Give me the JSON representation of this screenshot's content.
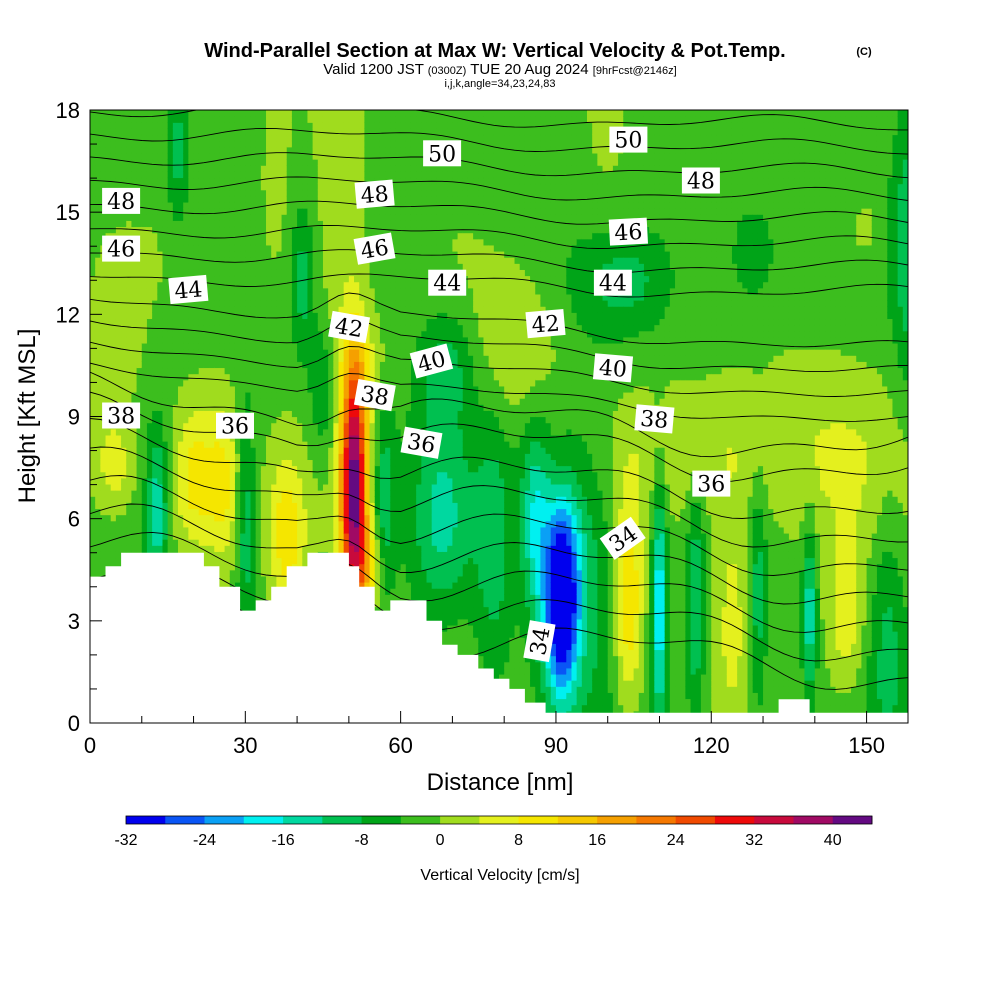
{
  "header": {
    "title": "Wind-Parallel Section at Max W: Vertical Velocity & Pot.Temp.",
    "copyright": "(C)",
    "valid_prefix": "Valid 1200 JST",
    "valid_utc": "(0300Z)",
    "valid_date": "TUE 20 Aug 2024",
    "forecast": "[9hrFcst@2146z]",
    "indices": "i,j,k,angle=34,23,24,83"
  },
  "chart_data": {
    "type": "heatmap",
    "xlabel": "Distance [nm]",
    "ylabel": "Height [Kft MSL]",
    "xlim": [
      0,
      158
    ],
    "ylim": [
      0,
      18
    ],
    "x_ticks": [
      0,
      30,
      60,
      90,
      120,
      150
    ],
    "y_ticks": [
      0,
      3,
      6,
      9,
      12,
      15,
      18
    ],
    "grid": false,
    "terrain": {
      "description": "white terrain mask along the bottom",
      "profile": [
        [
          0,
          4.3
        ],
        [
          3,
          4.3
        ],
        [
          3,
          4.6
        ],
        [
          6,
          4.6
        ],
        [
          6,
          5.0
        ],
        [
          22,
          5.0
        ],
        [
          22,
          4.6
        ],
        [
          25,
          4.6
        ],
        [
          25,
          4.0
        ],
        [
          29,
          4.0
        ],
        [
          29,
          3.3
        ],
        [
          32,
          3.3
        ],
        [
          32,
          3.6
        ],
        [
          35,
          3.6
        ],
        [
          35,
          4.0
        ],
        [
          38,
          4.0
        ],
        [
          38,
          4.6
        ],
        [
          42,
          4.6
        ],
        [
          42,
          5.0
        ],
        [
          50,
          5.0
        ],
        [
          50,
          4.6
        ],
        [
          52,
          4.6
        ],
        [
          52,
          4.0
        ],
        [
          55,
          4.0
        ],
        [
          55,
          3.3
        ],
        [
          58,
          3.3
        ],
        [
          58,
          3.6
        ],
        [
          65,
          3.6
        ],
        [
          65,
          3.0
        ],
        [
          68,
          3.0
        ],
        [
          68,
          2.3
        ],
        [
          71,
          2.3
        ],
        [
          71,
          2.0
        ],
        [
          75,
          2.0
        ],
        [
          75,
          1.6
        ],
        [
          78,
          1.6
        ],
        [
          78,
          1.3
        ],
        [
          81,
          1.3
        ],
        [
          81,
          1.0
        ],
        [
          84,
          1.0
        ],
        [
          84,
          0.6
        ],
        [
          88,
          0.6
        ],
        [
          88,
          0.3
        ],
        [
          133,
          0.3
        ],
        [
          133,
          0.7
        ],
        [
          139,
          0.7
        ],
        [
          139,
          0.3
        ],
        [
          158,
          0.3
        ]
      ]
    },
    "colorbar": {
      "label": "Vertical Velocity [cm/s]",
      "tick_labels": [
        "-32",
        "-24",
        "-16",
        "-8",
        "0",
        "8",
        "16",
        "24",
        "32",
        "40"
      ],
      "levels": [
        -32,
        -28,
        -24,
        -20,
        -16,
        -12,
        -8,
        -4,
        0,
        4,
        8,
        12,
        16,
        20,
        24,
        28,
        32,
        36,
        40,
        44
      ],
      "colors": [
        "#0000ee",
        "#0a55f5",
        "#0aa0f5",
        "#00f0f0",
        "#00d8a0",
        "#00c050",
        "#00a418",
        "#3cbe1e",
        "#a0dc1e",
        "#e4f01e",
        "#f5e600",
        "#f5c800",
        "#f5a000",
        "#f57800",
        "#f04a00",
        "#ee0a0a",
        "#c80a3c",
        "#a00a64",
        "#640a82"
      ]
    },
    "background_value": -2,
    "anomalies": [
      {
        "x": 20,
        "y": 7.2,
        "sx": 3.2,
        "sy": 1.6,
        "w": 13
      },
      {
        "x": 26,
        "y": 7.0,
        "sx": 2.5,
        "sy": 1.8,
        "w": 10
      },
      {
        "x": 13,
        "y": 6.2,
        "sx": 1.4,
        "sy": 1.6,
        "w": -12
      },
      {
        "x": 30,
        "y": 6.0,
        "sx": 1.3,
        "sy": 2.4,
        "w": -10
      },
      {
        "x": 38,
        "y": 5.5,
        "sx": 2.5,
        "sy": 1.6,
        "w": 12
      },
      {
        "x": 51,
        "y": 6.8,
        "sx": 1.8,
        "sy": 2.6,
        "w": 44
      },
      {
        "x": 54,
        "y": 4.5,
        "sx": 2.0,
        "sy": 0.8,
        "w": 10
      },
      {
        "x": 57,
        "y": 6.5,
        "sx": 1.4,
        "sy": 2.0,
        "w": -9
      },
      {
        "x": 68,
        "y": 6.0,
        "sx": 4.0,
        "sy": 2.0,
        "w": -10
      },
      {
        "x": 78,
        "y": 5.0,
        "sx": 2.5,
        "sy": 2.8,
        "w": -8
      },
      {
        "x": 86,
        "y": 6.0,
        "sx": 2.0,
        "sy": 2.0,
        "w": -14
      },
      {
        "x": 91,
        "y": 3.7,
        "sx": 2.4,
        "sy": 2.0,
        "w": -36
      },
      {
        "x": 96,
        "y": 5.0,
        "sx": 4.0,
        "sy": 3.0,
        "w": -8
      },
      {
        "x": 104,
        "y": 3.5,
        "sx": 2.0,
        "sy": 2.2,
        "w": 14
      },
      {
        "x": 110,
        "y": 3.5,
        "sx": 1.0,
        "sy": 2.6,
        "w": -18
      },
      {
        "x": 117,
        "y": 3.5,
        "sx": 1.2,
        "sy": 2.5,
        "w": -10
      },
      {
        "x": 124,
        "y": 3.5,
        "sx": 2.5,
        "sy": 2.5,
        "w": 7
      },
      {
        "x": 129,
        "y": 3.5,
        "sx": 1.2,
        "sy": 2.5,
        "w": -9
      },
      {
        "x": 139,
        "y": 3.3,
        "sx": 1.0,
        "sy": 1.8,
        "w": -14
      },
      {
        "x": 146,
        "y": 3.0,
        "sx": 2.5,
        "sy": 1.5,
        "w": 8
      },
      {
        "x": 154,
        "y": 3.0,
        "sx": 2.5,
        "sy": 3.0,
        "w": -7
      },
      {
        "x": 45,
        "y": 9.8,
        "sx": 2.0,
        "sy": 1.5,
        "w": -8
      },
      {
        "x": 53,
        "y": 10.5,
        "sx": 3.0,
        "sy": 1.0,
        "w": 5
      },
      {
        "x": 69,
        "y": 10.5,
        "sx": 4.0,
        "sy": 1.2,
        "w": -8
      },
      {
        "x": 82,
        "y": 11.0,
        "sx": 6.0,
        "sy": 1.5,
        "w": 6
      },
      {
        "x": 120,
        "y": 8.0,
        "sx": 14.0,
        "sy": 1.5,
        "w": 6
      },
      {
        "x": 145,
        "y": 7.5,
        "sx": 10.0,
        "sy": 2.5,
        "w": 5
      },
      {
        "x": 36,
        "y": 15.0,
        "sx": 3.0,
        "sy": 2.5,
        "w": 4
      },
      {
        "x": 48,
        "y": 14.0,
        "sx": 4.0,
        "sy": 4.0,
        "w": 6
      },
      {
        "x": 41,
        "y": 13.0,
        "sx": 1.5,
        "sy": 1.5,
        "w": -8
      },
      {
        "x": 17,
        "y": 16.5,
        "sx": 1.5,
        "sy": 1.5,
        "w": -8
      },
      {
        "x": 100,
        "y": 16.0,
        "sx": 5.0,
        "sy": 2.0,
        "w": 3
      },
      {
        "x": 103,
        "y": 13.0,
        "sx": 6.0,
        "sy": 1.0,
        "w": -7
      },
      {
        "x": 128,
        "y": 13.8,
        "sx": 3.0,
        "sy": 1.0,
        "w": -8
      },
      {
        "x": 150,
        "y": 14.5,
        "sx": 3.0,
        "sy": 1.0,
        "w": 4
      },
      {
        "x": 158,
        "y": 14.0,
        "sx": 2.0,
        "sy": 3.0,
        "w": -8
      },
      {
        "x": 4,
        "y": 11.0,
        "sx": 4.0,
        "sy": 2.0,
        "w": 5
      },
      {
        "x": 5,
        "y": 7.5,
        "sx": 3.0,
        "sy": 1.0,
        "w": 8
      }
    ],
    "contour_lines": {
      "levels_from": 31,
      "levels_to": 51,
      "step": 1
    },
    "contour_labels": [
      {
        "text": "50",
        "x": 68,
        "y": 16.7,
        "angle": 0
      },
      {
        "text": "50",
        "x": 104,
        "y": 17.1,
        "angle": 0
      },
      {
        "text": "48",
        "x": 6,
        "y": 15.3,
        "angle": 0
      },
      {
        "text": "48",
        "x": 55,
        "y": 15.5,
        "angle": -5
      },
      {
        "text": "48",
        "x": 118,
        "y": 15.9,
        "angle": 0
      },
      {
        "text": "46",
        "x": 6,
        "y": 13.9,
        "angle": 0
      },
      {
        "text": "46",
        "x": 55,
        "y": 13.9,
        "angle": -10
      },
      {
        "text": "46",
        "x": 104,
        "y": 14.4,
        "angle": -3
      },
      {
        "text": "44",
        "x": 19,
        "y": 12.7,
        "angle": -5
      },
      {
        "text": "44",
        "x": 69,
        "y": 12.9,
        "angle": 0
      },
      {
        "text": "44",
        "x": 101,
        "y": 12.9,
        "angle": 0
      },
      {
        "text": "42",
        "x": 50,
        "y": 11.6,
        "angle": 10
      },
      {
        "text": "42",
        "x": 88,
        "y": 11.7,
        "angle": -5
      },
      {
        "text": "40",
        "x": 66,
        "y": 10.6,
        "angle": -15
      },
      {
        "text": "40",
        "x": 101,
        "y": 10.4,
        "angle": 5
      },
      {
        "text": "38",
        "x": 6,
        "y": 9.0,
        "angle": 0
      },
      {
        "text": "38",
        "x": 55,
        "y": 9.6,
        "angle": 10
      },
      {
        "text": "38",
        "x": 109,
        "y": 8.9,
        "angle": 5
      },
      {
        "text": "36",
        "x": 28,
        "y": 8.7,
        "angle": 0
      },
      {
        "text": "36",
        "x": 64,
        "y": 8.2,
        "angle": 10
      },
      {
        "text": "36",
        "x": 120,
        "y": 7.0,
        "angle": 0
      },
      {
        "text": "34",
        "x": 103,
        "y": 5.4,
        "angle": -35
      },
      {
        "text": "34",
        "x": 87,
        "y": 2.4,
        "angle": -80
      }
    ]
  }
}
